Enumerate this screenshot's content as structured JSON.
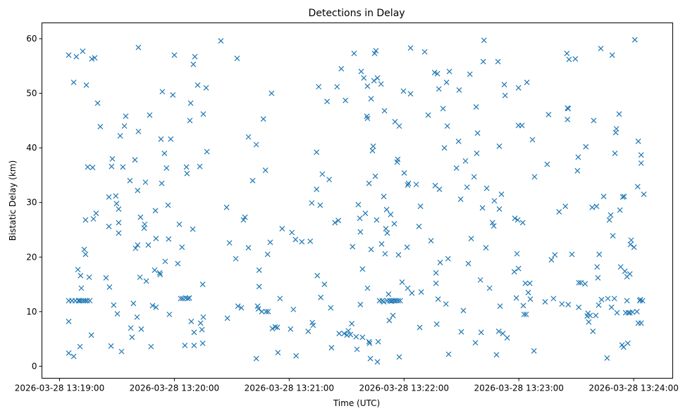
{
  "chart_data": {
    "type": "scatter",
    "title": "Detections in Delay",
    "xlabel": "Time (UTC)",
    "ylabel": "Bistatic Delay (km)",
    "x_origin": "2026-03-28 13:19:00",
    "x_units": "seconds since 2026-03-28 13:19:00",
    "xlim": [
      -9.2,
      320.4
    ],
    "ylim": [
      -2.2,
      62.9
    ],
    "x_ticks": [
      0,
      60,
      120,
      180,
      240,
      300
    ],
    "x_tick_labels": [
      "2026-03-28 13:19:00",
      "2026-03-28 13:20:00",
      "2026-03-28 13:21:00",
      "2026-03-28 13:22:00",
      "2026-03-28 13:23:00",
      "2026-03-28 13:24:00"
    ],
    "y_ticks": [
      0,
      10,
      20,
      30,
      40,
      50,
      60
    ],
    "y_tick_labels": [
      "0",
      "10",
      "20",
      "30",
      "40",
      "50",
      "60"
    ],
    "grid": false,
    "marker": "x",
    "color": "#1f77b4",
    "points": [
      [
        4.8,
        57
      ],
      [
        4.8,
        12
      ],
      [
        4.8,
        8.2
      ],
      [
        4.8,
        2.4
      ],
      [
        7.4,
        1.8
      ],
      [
        7.4,
        52
      ],
      [
        6.5,
        12
      ],
      [
        8.2,
        12
      ],
      [
        8.8,
        56.7
      ],
      [
        9.6,
        17.7
      ],
      [
        9.9,
        12
      ],
      [
        10.3,
        12
      ],
      [
        10.7,
        3.6
      ],
      [
        11,
        16.6
      ],
      [
        11.2,
        12
      ],
      [
        11.4,
        14.3
      ],
      [
        12.1,
        57.7
      ],
      [
        12.4,
        12
      ],
      [
        12.9,
        21.4
      ],
      [
        13.4,
        12
      ],
      [
        13.6,
        20.5
      ],
      [
        14,
        51.5
      ],
      [
        13.6,
        26.8
      ],
      [
        14.4,
        12
      ],
      [
        14.7,
        36.5
      ],
      [
        15.5,
        16.3
      ],
      [
        15.8,
        12
      ],
      [
        16.6,
        5.7
      ],
      [
        16.9,
        56.3
      ],
      [
        17.3,
        36.4
      ],
      [
        17.7,
        27
      ],
      [
        18.4,
        56.5
      ],
      [
        19.1,
        28
      ],
      [
        19.9,
        48.2
      ],
      [
        21.3,
        43.9
      ],
      [
        24.3,
        16.2
      ],
      [
        25.8,
        31
      ],
      [
        25.8,
        25.6
      ],
      [
        26.1,
        14.5
      ],
      [
        26.9,
        3.7
      ],
      [
        27.2,
        36.6
      ],
      [
        27.6,
        38
      ],
      [
        28.3,
        11.2
      ],
      [
        29.4,
        31.2
      ],
      [
        29.8,
        29.8
      ],
      [
        30.2,
        9.6
      ],
      [
        30.9,
        28.8
      ],
      [
        30.9,
        26.3
      ],
      [
        30.9,
        24.4
      ],
      [
        31.7,
        42.2
      ],
      [
        32.4,
        2.7
      ],
      [
        33.1,
        36.5
      ],
      [
        33.9,
        44
      ],
      [
        34.6,
        45.8
      ],
      [
        36.8,
        34
      ],
      [
        37.2,
        7
      ],
      [
        37.9,
        5.3
      ],
      [
        38.6,
        11.5
      ],
      [
        39.4,
        37.8
      ],
      [
        39.7,
        21.6
      ],
      [
        40.5,
        9
      ],
      [
        40.8,
        22.2
      ],
      [
        40.8,
        32.2
      ],
      [
        41.2,
        43
      ],
      [
        41.2,
        58.4
      ],
      [
        42,
        16.3
      ],
      [
        42.3,
        27.3
      ],
      [
        42.7,
        6.8
      ],
      [
        44.2,
        25.3
      ],
      [
        44.5,
        26
      ],
      [
        44.9,
        33.7
      ],
      [
        45.3,
        15.6
      ],
      [
        46.4,
        22.2
      ],
      [
        47.1,
        46
      ],
      [
        47.8,
        3.6
      ],
      [
        48.6,
        11.1
      ],
      [
        49.7,
        17.6
      ],
      [
        50.1,
        28.5
      ],
      [
        50.4,
        23.4
      ],
      [
        50.4,
        10.8
      ],
      [
        52.3,
        17.1
      ],
      [
        52.6,
        16.8
      ],
      [
        53,
        41.6
      ],
      [
        53.4,
        33.5
      ],
      [
        53.7,
        50.3
      ],
      [
        54.8,
        39
      ],
      [
        55.2,
        19.2
      ],
      [
        55.9,
        36.3
      ],
      [
        56.7,
        29.5
      ],
      [
        57,
        23.3
      ],
      [
        57.4,
        9.5
      ],
      [
        58.1,
        41.6
      ],
      [
        59.2,
        49.7
      ],
      [
        60,
        57
      ],
      [
        61.8,
        18.8
      ],
      [
        62.6,
        26
      ],
      [
        63.3,
        12.4
      ],
      [
        64,
        21.8
      ],
      [
        64.4,
        12.4
      ],
      [
        65.5,
        3.8
      ],
      [
        65.9,
        12.5
      ],
      [
        66.3,
        36.5
      ],
      [
        66.6,
        35.3
      ],
      [
        67,
        12.4
      ],
      [
        67.8,
        12.5
      ],
      [
        68.1,
        45
      ],
      [
        68.5,
        48.2
      ],
      [
        68.8,
        8.2
      ],
      [
        69.6,
        25.1
      ],
      [
        69.9,
        55.3
      ],
      [
        70.3,
        3.8
      ],
      [
        70.3,
        6.2
      ],
      [
        70.7,
        56.7
      ],
      [
        72.2,
        51.5
      ],
      [
        73.3,
        36.6
      ],
      [
        73.7,
        7.9
      ],
      [
        74.4,
        6.7
      ],
      [
        74.8,
        15
      ],
      [
        74.8,
        4.2
      ],
      [
        75.1,
        9
      ],
      [
        75.1,
        46.2
      ],
      [
        76.6,
        51
      ],
      [
        77,
        39.3
      ],
      [
        84.3,
        59.6
      ],
      [
        87.3,
        29.1
      ],
      [
        87.7,
        8.8
      ],
      [
        88.8,
        22.6
      ],
      [
        92.1,
        19.7
      ],
      [
        92.8,
        56.4
      ],
      [
        93.2,
        11
      ],
      [
        95,
        10.7
      ],
      [
        96.1,
        26.8
      ],
      [
        96.9,
        27.3
      ],
      [
        98.7,
        21.7
      ],
      [
        98.7,
        42
      ],
      [
        100.9,
        34
      ],
      [
        102.8,
        40.6
      ],
      [
        102.8,
        1.4
      ],
      [
        103.5,
        11
      ],
      [
        103.9,
        10.5
      ],
      [
        104.3,
        17.6
      ],
      [
        104.3,
        14.6
      ],
      [
        105.7,
        10
      ],
      [
        106.5,
        45.3
      ],
      [
        107.6,
        35.9
      ],
      [
        107.9,
        10
      ],
      [
        108.7,
        20.5
      ],
      [
        109,
        10
      ],
      [
        110.1,
        22.7
      ],
      [
        110.8,
        50
      ],
      [
        111.2,
        6.9
      ],
      [
        112.7,
        7.2
      ],
      [
        113.8,
        7.1
      ],
      [
        114.1,
        2.5
      ],
      [
        115.2,
        12.4
      ],
      [
        116.3,
        25.2
      ],
      [
        120.7,
        6.8
      ],
      [
        121.4,
        24.5
      ],
      [
        122.2,
        10.4
      ],
      [
        123.3,
        23.2
      ],
      [
        123.6,
        1.9
      ],
      [
        126.6,
        22.8
      ],
      [
        129.9,
        6.4
      ],
      [
        131,
        22.9
      ],
      [
        131.8,
        29.9
      ],
      [
        132.1,
        8
      ],
      [
        132.5,
        7.5
      ],
      [
        134.3,
        39.2
      ],
      [
        134.3,
        32.4
      ],
      [
        134.7,
        16.6
      ],
      [
        135.4,
        51.2
      ],
      [
        136.2,
        29.5
      ],
      [
        136.5,
        12.6
      ],
      [
        137.3,
        35.2
      ],
      [
        138.4,
        15
      ],
      [
        139.8,
        48.5
      ],
      [
        140.9,
        34.2
      ],
      [
        141.7,
        10.7
      ],
      [
        142.1,
        3.4
      ],
      [
        143.9,
        26.3
      ],
      [
        145,
        51.2
      ],
      [
        145.7,
        26.7
      ],
      [
        146.1,
        6
      ],
      [
        147.2,
        54.5
      ],
      [
        148.7,
        6
      ],
      [
        149.4,
        48.7
      ],
      [
        150.2,
        5.7
      ],
      [
        150.9,
        6.5
      ],
      [
        152,
        5.8
      ],
      [
        152.7,
        7.8
      ],
      [
        153.1,
        21.9
      ],
      [
        153.9,
        57.3
      ],
      [
        155,
        5.4
      ],
      [
        155.4,
        3.1
      ],
      [
        156.1,
        29.6
      ],
      [
        156.9,
        27.1
      ],
      [
        157.2,
        24.6
      ],
      [
        157.2,
        11.3
      ],
      [
        157.6,
        54
      ],
      [
        158.3,
        5.3
      ],
      [
        158.3,
        17.8
      ],
      [
        159,
        52.8
      ],
      [
        159.8,
        28
      ],
      [
        160.6,
        45.8
      ],
      [
        160.9,
        45.4
      ],
      [
        160.9,
        51.3
      ],
      [
        160.9,
        14.3
      ],
      [
        161.7,
        33.5
      ],
      [
        161.7,
        4.5
      ],
      [
        162,
        4.2
      ],
      [
        162.4,
        1.4
      ],
      [
        162.8,
        49
      ],
      [
        162.8,
        21.4
      ],
      [
        163.5,
        39.5
      ],
      [
        163.9,
        40.3
      ],
      [
        164.3,
        52.3
      ],
      [
        164.6,
        57.3
      ],
      [
        165,
        34.8
      ],
      [
        165.3,
        57.8
      ],
      [
        165.7,
        26.8
      ],
      [
        166.1,
        52.8
      ],
      [
        166.1,
        0.8
      ],
      [
        166.5,
        4.5
      ],
      [
        167.2,
        12
      ],
      [
        168,
        51.7
      ],
      [
        168.3,
        22.4
      ],
      [
        168.6,
        12
      ],
      [
        169.4,
        31.1
      ],
      [
        169.4,
        11.8
      ],
      [
        169.8,
        46.8
      ],
      [
        170.1,
        20.6
      ],
      [
        170.5,
        25.2
      ],
      [
        170.9,
        28.7
      ],
      [
        171.2,
        24.4
      ],
      [
        171.2,
        12
      ],
      [
        171.9,
        13.2
      ],
      [
        172.3,
        8.4
      ],
      [
        172.5,
        12
      ],
      [
        173,
        27.8
      ],
      [
        173.3,
        11.9
      ],
      [
        174,
        12
      ],
      [
        174.2,
        9.3
      ],
      [
        174.9,
        26.1
      ],
      [
        175,
        12
      ],
      [
        175.3,
        44.8
      ],
      [
        175.8,
        12
      ],
      [
        176.4,
        37.4
      ],
      [
        176.7,
        37.9
      ],
      [
        176.9,
        12
      ],
      [
        177.1,
        20.4
      ],
      [
        177.5,
        44
      ],
      [
        177.5,
        1.7
      ],
      [
        178,
        12
      ],
      [
        179,
        15.4
      ],
      [
        179.7,
        50.4
      ],
      [
        180.1,
        35.4
      ],
      [
        181.6,
        21.8
      ],
      [
        181.9,
        14.3
      ],
      [
        181.9,
        33.2
      ],
      [
        182.3,
        33.5
      ],
      [
        183.4,
        49.9
      ],
      [
        183.4,
        58.3
      ],
      [
        184.1,
        13.4
      ],
      [
        186.4,
        33.3
      ],
      [
        187.8,
        25.6
      ],
      [
        188.2,
        7.1
      ],
      [
        188.6,
        29.3
      ],
      [
        189,
        13.6
      ],
      [
        190.8,
        57.6
      ],
      [
        192.6,
        46
      ],
      [
        194.1,
        23
      ],
      [
        196,
        53.8
      ],
      [
        196.3,
        33.1
      ],
      [
        196.7,
        17.1
      ],
      [
        196.7,
        15.2
      ],
      [
        197.1,
        7.7
      ],
      [
        197.4,
        53.6
      ],
      [
        197.8,
        12.3
      ],
      [
        198.2,
        50.8
      ],
      [
        198.5,
        32.4
      ],
      [
        198.9,
        19
      ],
      [
        200.4,
        47.2
      ],
      [
        201.1,
        40
      ],
      [
        201.9,
        11.4
      ],
      [
        202.2,
        52
      ],
      [
        202.6,
        44
      ],
      [
        203,
        19.7
      ],
      [
        203.3,
        2.2
      ],
      [
        203.7,
        54
      ],
      [
        207.4,
        36.3
      ],
      [
        208.5,
        41.2
      ],
      [
        208.8,
        50.6
      ],
      [
        209.6,
        30.6
      ],
      [
        209.9,
        6.3
      ],
      [
        211,
        10.2
      ],
      [
        212.1,
        37.6
      ],
      [
        212.9,
        32.8
      ],
      [
        213.6,
        18.8
      ],
      [
        214.4,
        53.5
      ],
      [
        215.1,
        23.4
      ],
      [
        216.6,
        34.7
      ],
      [
        217.3,
        4.3
      ],
      [
        217.7,
        47.5
      ],
      [
        218,
        39
      ],
      [
        218.4,
        42.7
      ],
      [
        219.9,
        15.8
      ],
      [
        220.3,
        6.2
      ],
      [
        221,
        29
      ],
      [
        221.4,
        55.8
      ],
      [
        221.8,
        59.7
      ],
      [
        222.8,
        21.7
      ],
      [
        223.2,
        32.6
      ],
      [
        224.7,
        14.3
      ],
      [
        226.2,
        26.3
      ],
      [
        226.9,
        25.7
      ],
      [
        227.2,
        30.3
      ],
      [
        228.3,
        2.1
      ],
      [
        229.1,
        55.8
      ],
      [
        229.5,
        6.4
      ],
      [
        229.8,
        40.3
      ],
      [
        229.8,
        28.8
      ],
      [
        230.2,
        11
      ],
      [
        230.9,
        31.5
      ],
      [
        231.6,
        6
      ],
      [
        232.4,
        51.6
      ],
      [
        232.8,
        49.6
      ],
      [
        233.9,
        5.2
      ],
      [
        237.6,
        17.3
      ],
      [
        237.9,
        27.1
      ],
      [
        238.7,
        12.5
      ],
      [
        239,
        20.6
      ],
      [
        239.4,
        26.8
      ],
      [
        239.8,
        51
      ],
      [
        239.8,
        44.1
      ],
      [
        239.8,
        17.9
      ],
      [
        241.6,
        44.1
      ],
      [
        242,
        26.3
      ],
      [
        242.3,
        11.1
      ],
      [
        242.7,
        9.5
      ],
      [
        243.4,
        15.2
      ],
      [
        243.8,
        9.5
      ],
      [
        244.2,
        52
      ],
      [
        244.9,
        13.5
      ],
      [
        245.7,
        15.2
      ],
      [
        246,
        12.3
      ],
      [
        247.1,
        41.5
      ],
      [
        247.9,
        2.8
      ],
      [
        248.2,
        34.7
      ],
      [
        253.7,
        11.8
      ],
      [
        254.8,
        37
      ],
      [
        255.5,
        46.1
      ],
      [
        257,
        19.5
      ],
      [
        258.1,
        12.4
      ],
      [
        258.8,
        20.4
      ],
      [
        261,
        28.3
      ],
      [
        262.5,
        11.4
      ],
      [
        264.3,
        29.3
      ],
      [
        265.1,
        57.3
      ],
      [
        265.4,
        47.3
      ],
      [
        265.4,
        45.2
      ],
      [
        265.8,
        11.3
      ],
      [
        265.8,
        47.2
      ],
      [
        266.2,
        56.2
      ],
      [
        267.7,
        20.5
      ],
      [
        269.5,
        56.3
      ],
      [
        270.6,
        35.8
      ],
      [
        271,
        38.3
      ],
      [
        271.3,
        15.3
      ],
      [
        271.3,
        10.8
      ],
      [
        272.4,
        15.3
      ],
      [
        274.6,
        15.1
      ],
      [
        275,
        40.2
      ],
      [
        275.7,
        9.2
      ],
      [
        276.1,
        9.7
      ],
      [
        276.5,
        8.1
      ],
      [
        277.2,
        9.3
      ],
      [
        278.3,
        29.1
      ],
      [
        278.7,
        6.4
      ],
      [
        279.1,
        45
      ],
      [
        280.2,
        9.3
      ],
      [
        280.6,
        29.3
      ],
      [
        280.9,
        18.2
      ],
      [
        281.3,
        16.2
      ],
      [
        281.7,
        11.2
      ],
      [
        282,
        20.5
      ],
      [
        282.8,
        58.2
      ],
      [
        283.2,
        12.2
      ],
      [
        284.3,
        31.1
      ],
      [
        286.1,
        1.5
      ],
      [
        286.5,
        12.4
      ],
      [
        287.3,
        26.8
      ],
      [
        288,
        27.7
      ],
      [
        288.4,
        10.8
      ],
      [
        288.8,
        57
      ],
      [
        289.1,
        23.9
      ],
      [
        289.9,
        12.4
      ],
      [
        290.2,
        39
      ],
      [
        290.6,
        42.8
      ],
      [
        291,
        43.5
      ],
      [
        291.3,
        9.8
      ],
      [
        292.4,
        46.2
      ],
      [
        292.8,
        28.6
      ],
      [
        293.2,
        18.2
      ],
      [
        293.9,
        3.9
      ],
      [
        294.3,
        31
      ],
      [
        294.7,
        3.5
      ],
      [
        295,
        31.1
      ],
      [
        295.4,
        17.4
      ],
      [
        295.8,
        9.8
      ],
      [
        296.5,
        16.4
      ],
      [
        296.5,
        12
      ],
      [
        296.9,
        4.2
      ],
      [
        297.2,
        9.8
      ],
      [
        298,
        16.9
      ],
      [
        298,
        9.8
      ],
      [
        298.3,
        22.3
      ],
      [
        298.7,
        23.1
      ],
      [
        299.4,
        9.9
      ],
      [
        300.2,
        21.8
      ],
      [
        300.6,
        59.8
      ],
      [
        301.7,
        10
      ],
      [
        302.1,
        32.9
      ],
      [
        302.4,
        41.2
      ],
      [
        302.4,
        7.9
      ],
      [
        303.2,
        12
      ],
      [
        303.5,
        12.2
      ],
      [
        303.9,
        7.9
      ],
      [
        303.9,
        38.7
      ],
      [
        303.9,
        37.2
      ],
      [
        304.6,
        12
      ],
      [
        305.3,
        31.5
      ]
    ]
  }
}
